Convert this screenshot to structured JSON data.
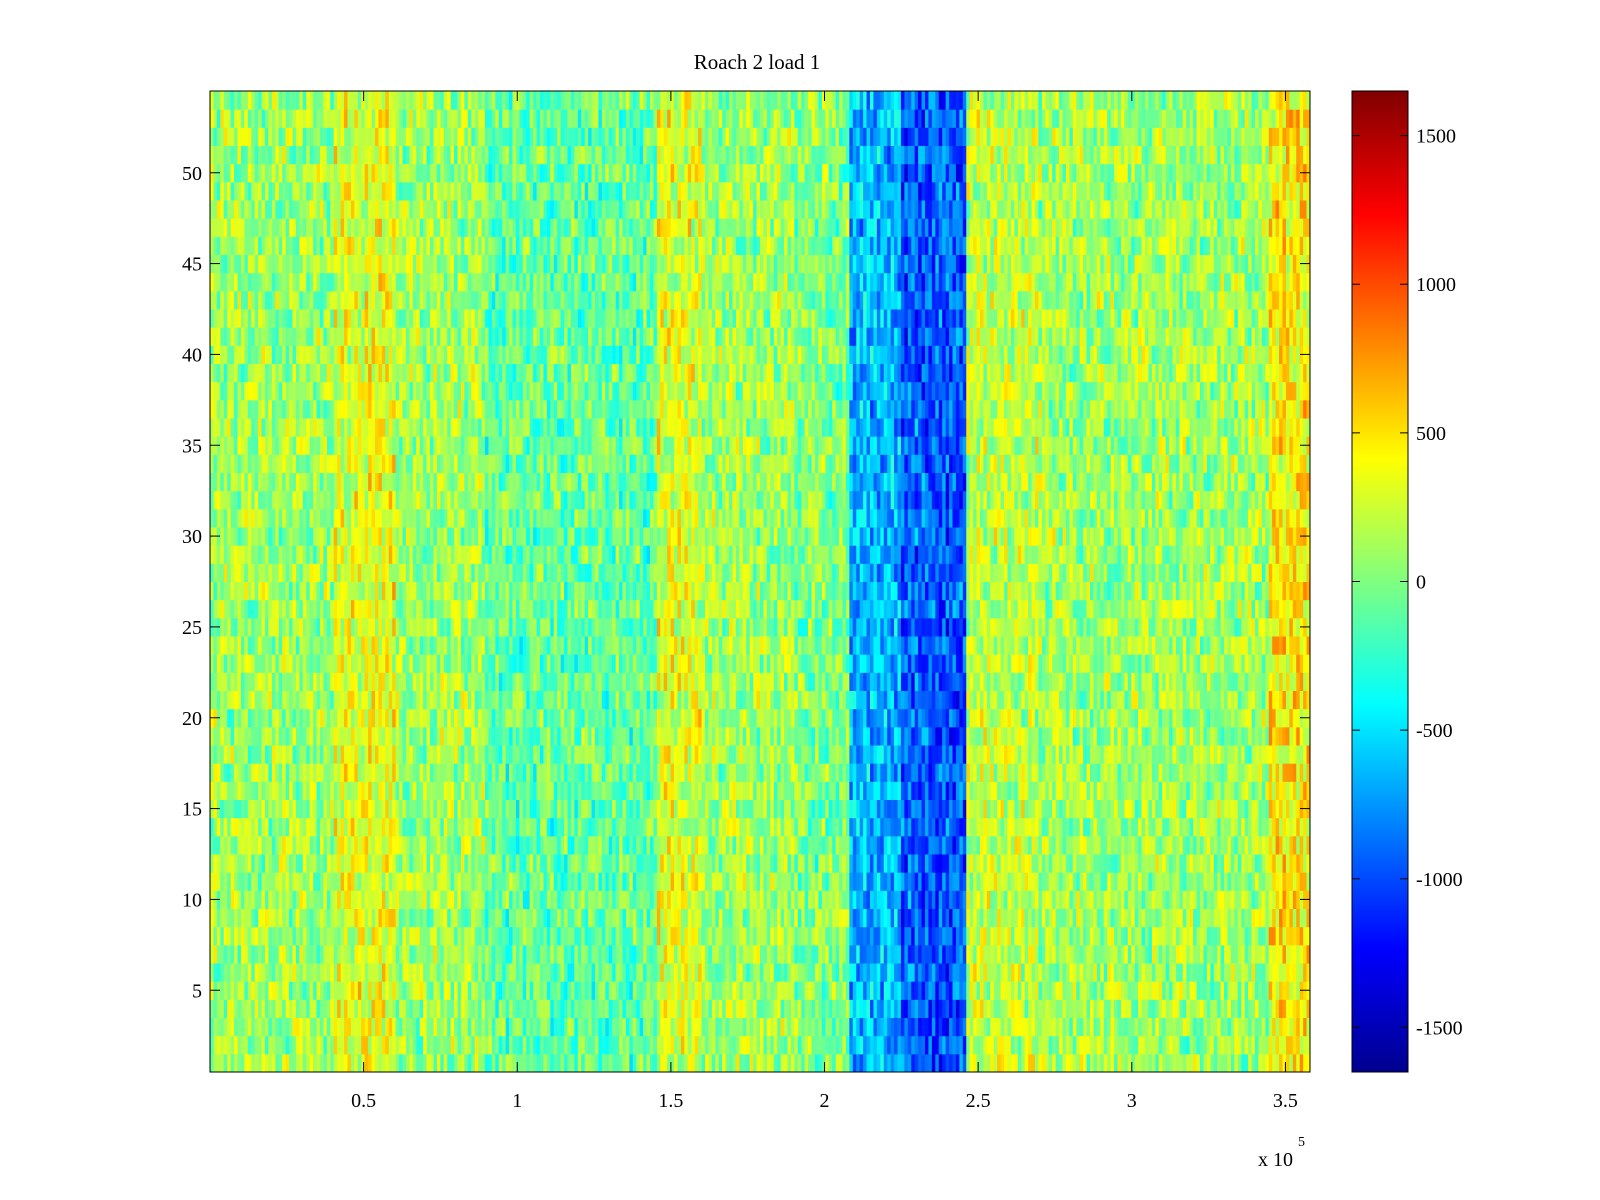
{
  "chart_data": {
    "type": "heatmap",
    "title": "Roach 2 load 1",
    "xlabel": "",
    "ylabel": "",
    "x_exponent_label": "x 10",
    "x_exponent_power": "5",
    "xlim": [
      0,
      3.58
    ],
    "ylim": [
      0.5,
      54.5
    ],
    "x_ticks": [
      0.5,
      1,
      1.5,
      2,
      2.5,
      3,
      3.5
    ],
    "x_tick_labels": [
      "0.5",
      "1",
      "1.5",
      "2",
      "2.5",
      "3",
      "3.5"
    ],
    "y_ticks": [
      5,
      10,
      15,
      20,
      25,
      30,
      35,
      40,
      45,
      50
    ],
    "y_tick_labels": [
      "5",
      "10",
      "15",
      "20",
      "25",
      "30",
      "35",
      "40",
      "45",
      "50"
    ],
    "rows": 54,
    "colormap": "jet",
    "color_range": [
      -1650,
      1650
    ],
    "colorbar_ticks": [
      1500,
      1000,
      500,
      0,
      -500,
      -1000,
      -1500
    ],
    "colorbar_tick_labels": [
      "1500",
      "1000",
      "500",
      "0",
      "-500",
      "-1000",
      "-1500"
    ],
    "column_profile": [
      {
        "x_start": 0.0,
        "x_end": 0.4,
        "mean": 100
      },
      {
        "x_start": 0.4,
        "x_end": 0.5,
        "mean": 300
      },
      {
        "x_start": 0.5,
        "x_end": 0.6,
        "mean": 350
      },
      {
        "x_start": 0.6,
        "x_end": 0.9,
        "mean": 100
      },
      {
        "x_start": 0.9,
        "x_end": 1.45,
        "mean": -100
      },
      {
        "x_start": 1.45,
        "x_end": 1.6,
        "mean": 300
      },
      {
        "x_start": 1.6,
        "x_end": 1.9,
        "mean": 100
      },
      {
        "x_start": 1.9,
        "x_end": 2.08,
        "mean": 0
      },
      {
        "x_start": 2.08,
        "x_end": 2.25,
        "mean": -650
      },
      {
        "x_start": 2.25,
        "x_end": 2.46,
        "mean": -950
      },
      {
        "x_start": 2.46,
        "x_end": 2.7,
        "mean": 200
      },
      {
        "x_start": 2.7,
        "x_end": 3.45,
        "mean": 100
      },
      {
        "x_start": 3.45,
        "x_end": 3.58,
        "mean": 450
      }
    ]
  }
}
